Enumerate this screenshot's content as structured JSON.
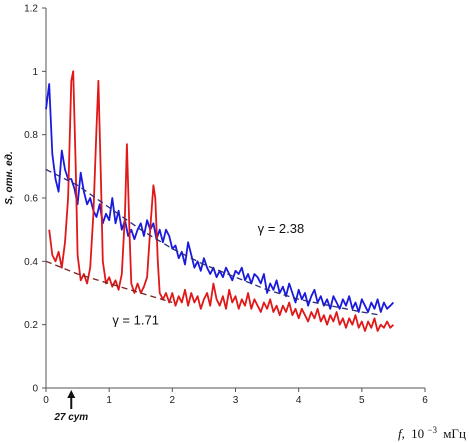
{
  "chart_data": {
    "type": "line",
    "ylabel": "S, отн. ед.",
    "xlabel_prefix": "f,",
    "xlabel_unit_base": "10",
    "xlabel_unit_exp": "−3",
    "xlabel_unit_tail": "мГц",
    "xlim": [
      0,
      6
    ],
    "ylim": [
      0,
      1.2
    ],
    "x_ticks": [
      "0",
      "1",
      "2",
      "3",
      "4",
      "5",
      "6"
    ],
    "y_ticks": [
      "0",
      "0.2",
      "0.4",
      "0.6",
      "0.8",
      "1",
      "1.2"
    ],
    "grid": false,
    "legend": "none",
    "marker": {
      "x": 0.4,
      "label": "27 сут"
    },
    "annotations": [
      {
        "text": "γ = 2.38",
        "x": 3.35,
        "y": 0.49
      },
      {
        "text": "γ = 1.71",
        "x": 1.05,
        "y": 0.2
      }
    ],
    "series": [
      {
        "color": "#1a1adf",
        "style": "solid",
        "points": [
          [
            0.0,
            0.88
          ],
          [
            0.05,
            0.96
          ],
          [
            0.1,
            0.74
          ],
          [
            0.15,
            0.66
          ],
          [
            0.2,
            0.62
          ],
          [
            0.25,
            0.75
          ],
          [
            0.3,
            0.69
          ],
          [
            0.35,
            0.66
          ],
          [
            0.4,
            0.66
          ],
          [
            0.45,
            0.63
          ],
          [
            0.5,
            0.58
          ],
          [
            0.55,
            0.68
          ],
          [
            0.6,
            0.62
          ],
          [
            0.65,
            0.58
          ],
          [
            0.7,
            0.6
          ],
          [
            0.75,
            0.56
          ],
          [
            0.8,
            0.54
          ],
          [
            0.85,
            0.58
          ],
          [
            0.9,
            0.52
          ],
          [
            0.95,
            0.55
          ],
          [
            1.0,
            0.53
          ],
          [
            1.05,
            0.6
          ],
          [
            1.1,
            0.52
          ],
          [
            1.15,
            0.56
          ],
          [
            1.2,
            0.5
          ],
          [
            1.25,
            0.53
          ],
          [
            1.3,
            0.48
          ],
          [
            1.35,
            0.5
          ],
          [
            1.4,
            0.47
          ],
          [
            1.45,
            0.5
          ],
          [
            1.5,
            0.52
          ],
          [
            1.55,
            0.48
          ],
          [
            1.6,
            0.53
          ],
          [
            1.65,
            0.5
          ],
          [
            1.7,
            0.52
          ],
          [
            1.75,
            0.47
          ],
          [
            1.8,
            0.5
          ],
          [
            1.85,
            0.46
          ],
          [
            1.9,
            0.5
          ],
          [
            1.95,
            0.48
          ],
          [
            2.0,
            0.44
          ],
          [
            2.05,
            0.45
          ],
          [
            2.1,
            0.41
          ],
          [
            2.15,
            0.43
          ],
          [
            2.2,
            0.39
          ],
          [
            2.25,
            0.46
          ],
          [
            2.3,
            0.42
          ],
          [
            2.35,
            0.38
          ],
          [
            2.4,
            0.4
          ],
          [
            2.45,
            0.37
          ],
          [
            2.5,
            0.41
          ],
          [
            2.55,
            0.38
          ],
          [
            2.6,
            0.36
          ],
          [
            2.65,
            0.38
          ],
          [
            2.7,
            0.35
          ],
          [
            2.75,
            0.37
          ],
          [
            2.8,
            0.35
          ],
          [
            2.85,
            0.38
          ],
          [
            2.9,
            0.36
          ],
          [
            2.95,
            0.34
          ],
          [
            3.0,
            0.37
          ],
          [
            3.05,
            0.36
          ],
          [
            3.1,
            0.38
          ],
          [
            3.15,
            0.34
          ],
          [
            3.2,
            0.36
          ],
          [
            3.25,
            0.33
          ],
          [
            3.3,
            0.36
          ],
          [
            3.35,
            0.35
          ],
          [
            3.4,
            0.33
          ],
          [
            3.45,
            0.36
          ],
          [
            3.5,
            0.3
          ],
          [
            3.55,
            0.33
          ],
          [
            3.6,
            0.31
          ],
          [
            3.65,
            0.34
          ],
          [
            3.7,
            0.3
          ],
          [
            3.75,
            0.32
          ],
          [
            3.8,
            0.29
          ],
          [
            3.85,
            0.33
          ],
          [
            3.9,
            0.3
          ],
          [
            3.95,
            0.27
          ],
          [
            4.0,
            0.31
          ],
          [
            4.05,
            0.28
          ],
          [
            4.1,
            0.3
          ],
          [
            4.15,
            0.26
          ],
          [
            4.2,
            0.29
          ],
          [
            4.25,
            0.31
          ],
          [
            4.3,
            0.27
          ],
          [
            4.35,
            0.29
          ],
          [
            4.4,
            0.26
          ],
          [
            4.45,
            0.28
          ],
          [
            4.5,
            0.25
          ],
          [
            4.55,
            0.29
          ],
          [
            4.6,
            0.27
          ],
          [
            4.65,
            0.25
          ],
          [
            4.7,
            0.28
          ],
          [
            4.75,
            0.26
          ],
          [
            4.8,
            0.29
          ],
          [
            4.85,
            0.25
          ],
          [
            4.9,
            0.27
          ],
          [
            4.95,
            0.24
          ],
          [
            5.0,
            0.28
          ],
          [
            5.05,
            0.26
          ],
          [
            5.1,
            0.24
          ],
          [
            5.15,
            0.27
          ],
          [
            5.2,
            0.25
          ],
          [
            5.25,
            0.28
          ],
          [
            5.3,
            0.24
          ],
          [
            5.35,
            0.27
          ],
          [
            5.4,
            0.25
          ],
          [
            5.45,
            0.26
          ],
          [
            5.5,
            0.27
          ]
        ]
      },
      {
        "color": "#e01818",
        "style": "solid",
        "points": [
          [
            0.05,
            0.5
          ],
          [
            0.1,
            0.42
          ],
          [
            0.15,
            0.4
          ],
          [
            0.2,
            0.43
          ],
          [
            0.25,
            0.38
          ],
          [
            0.3,
            0.46
          ],
          [
            0.35,
            0.6
          ],
          [
            0.4,
            0.97
          ],
          [
            0.43,
            1.0
          ],
          [
            0.47,
            0.7
          ],
          [
            0.5,
            0.42
          ],
          [
            0.55,
            0.34
          ],
          [
            0.6,
            0.36
          ],
          [
            0.65,
            0.33
          ],
          [
            0.7,
            0.38
          ],
          [
            0.75,
            0.55
          ],
          [
            0.8,
            0.82
          ],
          [
            0.83,
            0.97
          ],
          [
            0.87,
            0.65
          ],
          [
            0.9,
            0.4
          ],
          [
            0.95,
            0.33
          ],
          [
            1.0,
            0.35
          ],
          [
            1.05,
            0.32
          ],
          [
            1.1,
            0.34
          ],
          [
            1.15,
            0.31
          ],
          [
            1.2,
            0.36
          ],
          [
            1.25,
            0.55
          ],
          [
            1.28,
            0.77
          ],
          [
            1.32,
            0.5
          ],
          [
            1.35,
            0.33
          ],
          [
            1.4,
            0.3
          ],
          [
            1.45,
            0.33
          ],
          [
            1.5,
            0.3
          ],
          [
            1.55,
            0.32
          ],
          [
            1.6,
            0.35
          ],
          [
            1.65,
            0.5
          ],
          [
            1.7,
            0.64
          ],
          [
            1.73,
            0.6
          ],
          [
            1.77,
            0.4
          ],
          [
            1.8,
            0.3
          ],
          [
            1.85,
            0.28
          ],
          [
            1.9,
            0.3
          ],
          [
            1.95,
            0.27
          ],
          [
            2.0,
            0.3
          ],
          [
            2.05,
            0.26
          ],
          [
            2.1,
            0.29
          ],
          [
            2.15,
            0.27
          ],
          [
            2.2,
            0.31
          ],
          [
            2.25,
            0.26
          ],
          [
            2.3,
            0.3
          ],
          [
            2.35,
            0.27
          ],
          [
            2.4,
            0.29
          ],
          [
            2.45,
            0.25
          ],
          [
            2.5,
            0.28
          ],
          [
            2.55,
            0.3
          ],
          [
            2.6,
            0.26
          ],
          [
            2.65,
            0.33
          ],
          [
            2.7,
            0.28
          ],
          [
            2.75,
            0.26
          ],
          [
            2.8,
            0.29
          ],
          [
            2.85,
            0.25
          ],
          [
            2.9,
            0.31
          ],
          [
            2.95,
            0.27
          ],
          [
            3.0,
            0.29
          ],
          [
            3.05,
            0.25
          ],
          [
            3.1,
            0.28
          ],
          [
            3.15,
            0.26
          ],
          [
            3.2,
            0.3
          ],
          [
            3.25,
            0.25
          ],
          [
            3.3,
            0.28
          ],
          [
            3.35,
            0.26
          ],
          [
            3.4,
            0.24
          ],
          [
            3.45,
            0.27
          ],
          [
            3.5,
            0.25
          ],
          [
            3.55,
            0.28
          ],
          [
            3.6,
            0.24
          ],
          [
            3.65,
            0.26
          ],
          [
            3.7,
            0.23
          ],
          [
            3.75,
            0.26
          ],
          [
            3.8,
            0.24
          ],
          [
            3.85,
            0.27
          ],
          [
            3.9,
            0.23
          ],
          [
            3.95,
            0.25
          ],
          [
            4.0,
            0.22
          ],
          [
            4.05,
            0.25
          ],
          [
            4.1,
            0.23
          ],
          [
            4.15,
            0.21
          ],
          [
            4.2,
            0.24
          ],
          [
            4.25,
            0.22
          ],
          [
            4.3,
            0.25
          ],
          [
            4.35,
            0.21
          ],
          [
            4.4,
            0.23
          ],
          [
            4.45,
            0.2
          ],
          [
            4.5,
            0.23
          ],
          [
            4.55,
            0.21
          ],
          [
            4.6,
            0.24
          ],
          [
            4.65,
            0.2
          ],
          [
            4.7,
            0.22
          ],
          [
            4.75,
            0.19
          ],
          [
            4.8,
            0.22
          ],
          [
            4.85,
            0.2
          ],
          [
            4.9,
            0.23
          ],
          [
            4.95,
            0.19
          ],
          [
            5.0,
            0.21
          ],
          [
            5.05,
            0.18
          ],
          [
            5.1,
            0.21
          ],
          [
            5.15,
            0.19
          ],
          [
            5.2,
            0.22
          ],
          [
            5.25,
            0.18
          ],
          [
            5.3,
            0.2
          ],
          [
            5.35,
            0.19
          ],
          [
            5.4,
            0.21
          ],
          [
            5.45,
            0.19
          ],
          [
            5.5,
            0.2
          ]
        ]
      },
      {
        "color": "#2a2a7a",
        "style": "dashed",
        "points": [
          [
            0.0,
            0.69
          ],
          [
            0.5,
            0.64
          ],
          [
            1.0,
            0.57
          ],
          [
            1.5,
            0.5
          ],
          [
            2.0,
            0.44
          ],
          [
            2.5,
            0.39
          ],
          [
            3.0,
            0.35
          ],
          [
            3.5,
            0.31
          ],
          [
            4.0,
            0.28
          ],
          [
            4.5,
            0.26
          ],
          [
            5.0,
            0.24
          ],
          [
            5.3,
            0.23
          ]
        ]
      },
      {
        "color": "#7a2222",
        "style": "dashed",
        "points": [
          [
            0.0,
            0.4
          ],
          [
            0.5,
            0.36
          ],
          [
            1.0,
            0.33
          ],
          [
            1.5,
            0.3
          ],
          [
            2.0,
            0.27
          ]
        ]
      }
    ]
  }
}
